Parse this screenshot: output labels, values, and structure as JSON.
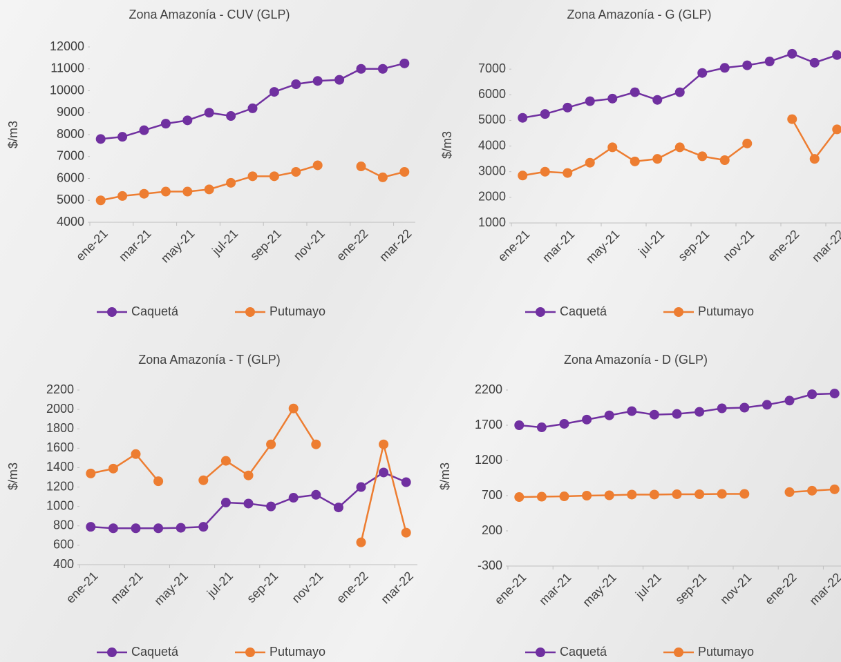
{
  "chart_data": [
    {
      "type": "line",
      "title": "Zona Amazonía - CUV (GLP)",
      "y_label": "$/m3",
      "categories": [
        "ene-21",
        null,
        "mar-21",
        null,
        "may-21",
        null,
        "jul-21",
        null,
        "sep-21",
        null,
        "nov-21",
        null,
        "ene-22",
        null,
        "mar-22"
      ],
      "series": [
        {
          "name": "Caquetá",
          "color": "#7030a0",
          "values": [
            7800,
            7900,
            8200,
            8500,
            8650,
            9000,
            8850,
            9200,
            9950,
            10300,
            10450,
            10500,
            11000,
            11000,
            11250
          ]
        },
        {
          "name": "Putumayo",
          "color": "#ed7d31",
          "values": [
            5000,
            5200,
            5300,
            5400,
            5400,
            5500,
            5800,
            6100,
            6100,
            6300,
            6600,
            null,
            6550,
            6050,
            6300
          ]
        }
      ],
      "ylim": [
        4000,
        12000
      ],
      "yticks": [
        4000,
        5000,
        6000,
        7000,
        8000,
        9000,
        10000,
        11000,
        12000
      ],
      "legend": "bottom"
    },
    {
      "type": "line",
      "title": "Zona Amazonía  - G (GLP)",
      "y_label": "$/m3",
      "categories": [
        "ene-21",
        null,
        "mar-21",
        null,
        "may-21",
        null,
        "jul-21",
        null,
        "sep-21",
        null,
        "nov-21",
        null,
        "ene-22",
        null,
        "mar-22"
      ],
      "series": [
        {
          "name": "Caquetá",
          "color": "#7030a0",
          "values": [
            5100,
            5250,
            5500,
            5750,
            5850,
            6100,
            5800,
            6100,
            6850,
            7050,
            7150,
            7300,
            7600,
            7250,
            7550
          ]
        },
        {
          "name": "Putumayo",
          "color": "#ed7d31",
          "values": [
            2850,
            3000,
            2950,
            3350,
            3950,
            3400,
            3500,
            3950,
            3600,
            3450,
            4100,
            null,
            5050,
            3500,
            4650
          ]
        }
      ],
      "ylim": [
        1000,
        8000
      ],
      "yticks": [
        1000,
        2000,
        3000,
        4000,
        5000,
        6000,
        7000
      ],
      "legend": "bottom"
    },
    {
      "type": "line",
      "title": "Zona Amazonía - T (GLP)",
      "y_label": "$/m3",
      "categories": [
        "ene-21",
        null,
        "mar-21",
        null,
        "may-21",
        null,
        "jul-21",
        null,
        "sep-21",
        null,
        "nov-21",
        null,
        "ene-22",
        null,
        "mar-22"
      ],
      "series": [
        {
          "name": "Caquetá",
          "color": "#7030a0",
          "values": [
            790,
            775,
            775,
            775,
            780,
            790,
            1040,
            1030,
            1000,
            1090,
            1120,
            990,
            1200,
            1350,
            1250
          ]
        },
        {
          "name": "Putumayo",
          "color": "#ed7d31",
          "values": [
            1340,
            1390,
            1540,
            1260,
            null,
            1270,
            1470,
            1320,
            1640,
            2010,
            1640,
            null,
            630,
            1640,
            730
          ]
        }
      ],
      "ylim": [
        400,
        2200
      ],
      "yticks": [
        400,
        600,
        800,
        1000,
        1200,
        1400,
        1600,
        1800,
        2000,
        2200
      ],
      "legend": "bottom"
    },
    {
      "type": "line",
      "title": "Zona Amazonía - D (GLP)",
      "y_label": "$/m3",
      "categories": [
        "ene-21",
        null,
        "mar-21",
        null,
        "may-21",
        null,
        "jul-21",
        null,
        "sep-21",
        null,
        "nov-21",
        null,
        "ene-22",
        null,
        "mar-22"
      ],
      "series": [
        {
          "name": "Caquetá",
          "color": "#7030a0",
          "values": [
            1700,
            1670,
            1720,
            1780,
            1840,
            1900,
            1850,
            1860,
            1890,
            1940,
            1950,
            1990,
            2050,
            2140,
            2150
          ]
        },
        {
          "name": "Putumayo",
          "color": "#ed7d31",
          "values": [
            680,
            685,
            690,
            700,
            705,
            715,
            715,
            720,
            720,
            725,
            725,
            null,
            750,
            770,
            790
          ]
        }
      ],
      "ylim": [
        -300,
        2450
      ],
      "yticks": [
        -300,
        200,
        700,
        1200,
        1700,
        2200
      ],
      "legend": "bottom"
    }
  ]
}
